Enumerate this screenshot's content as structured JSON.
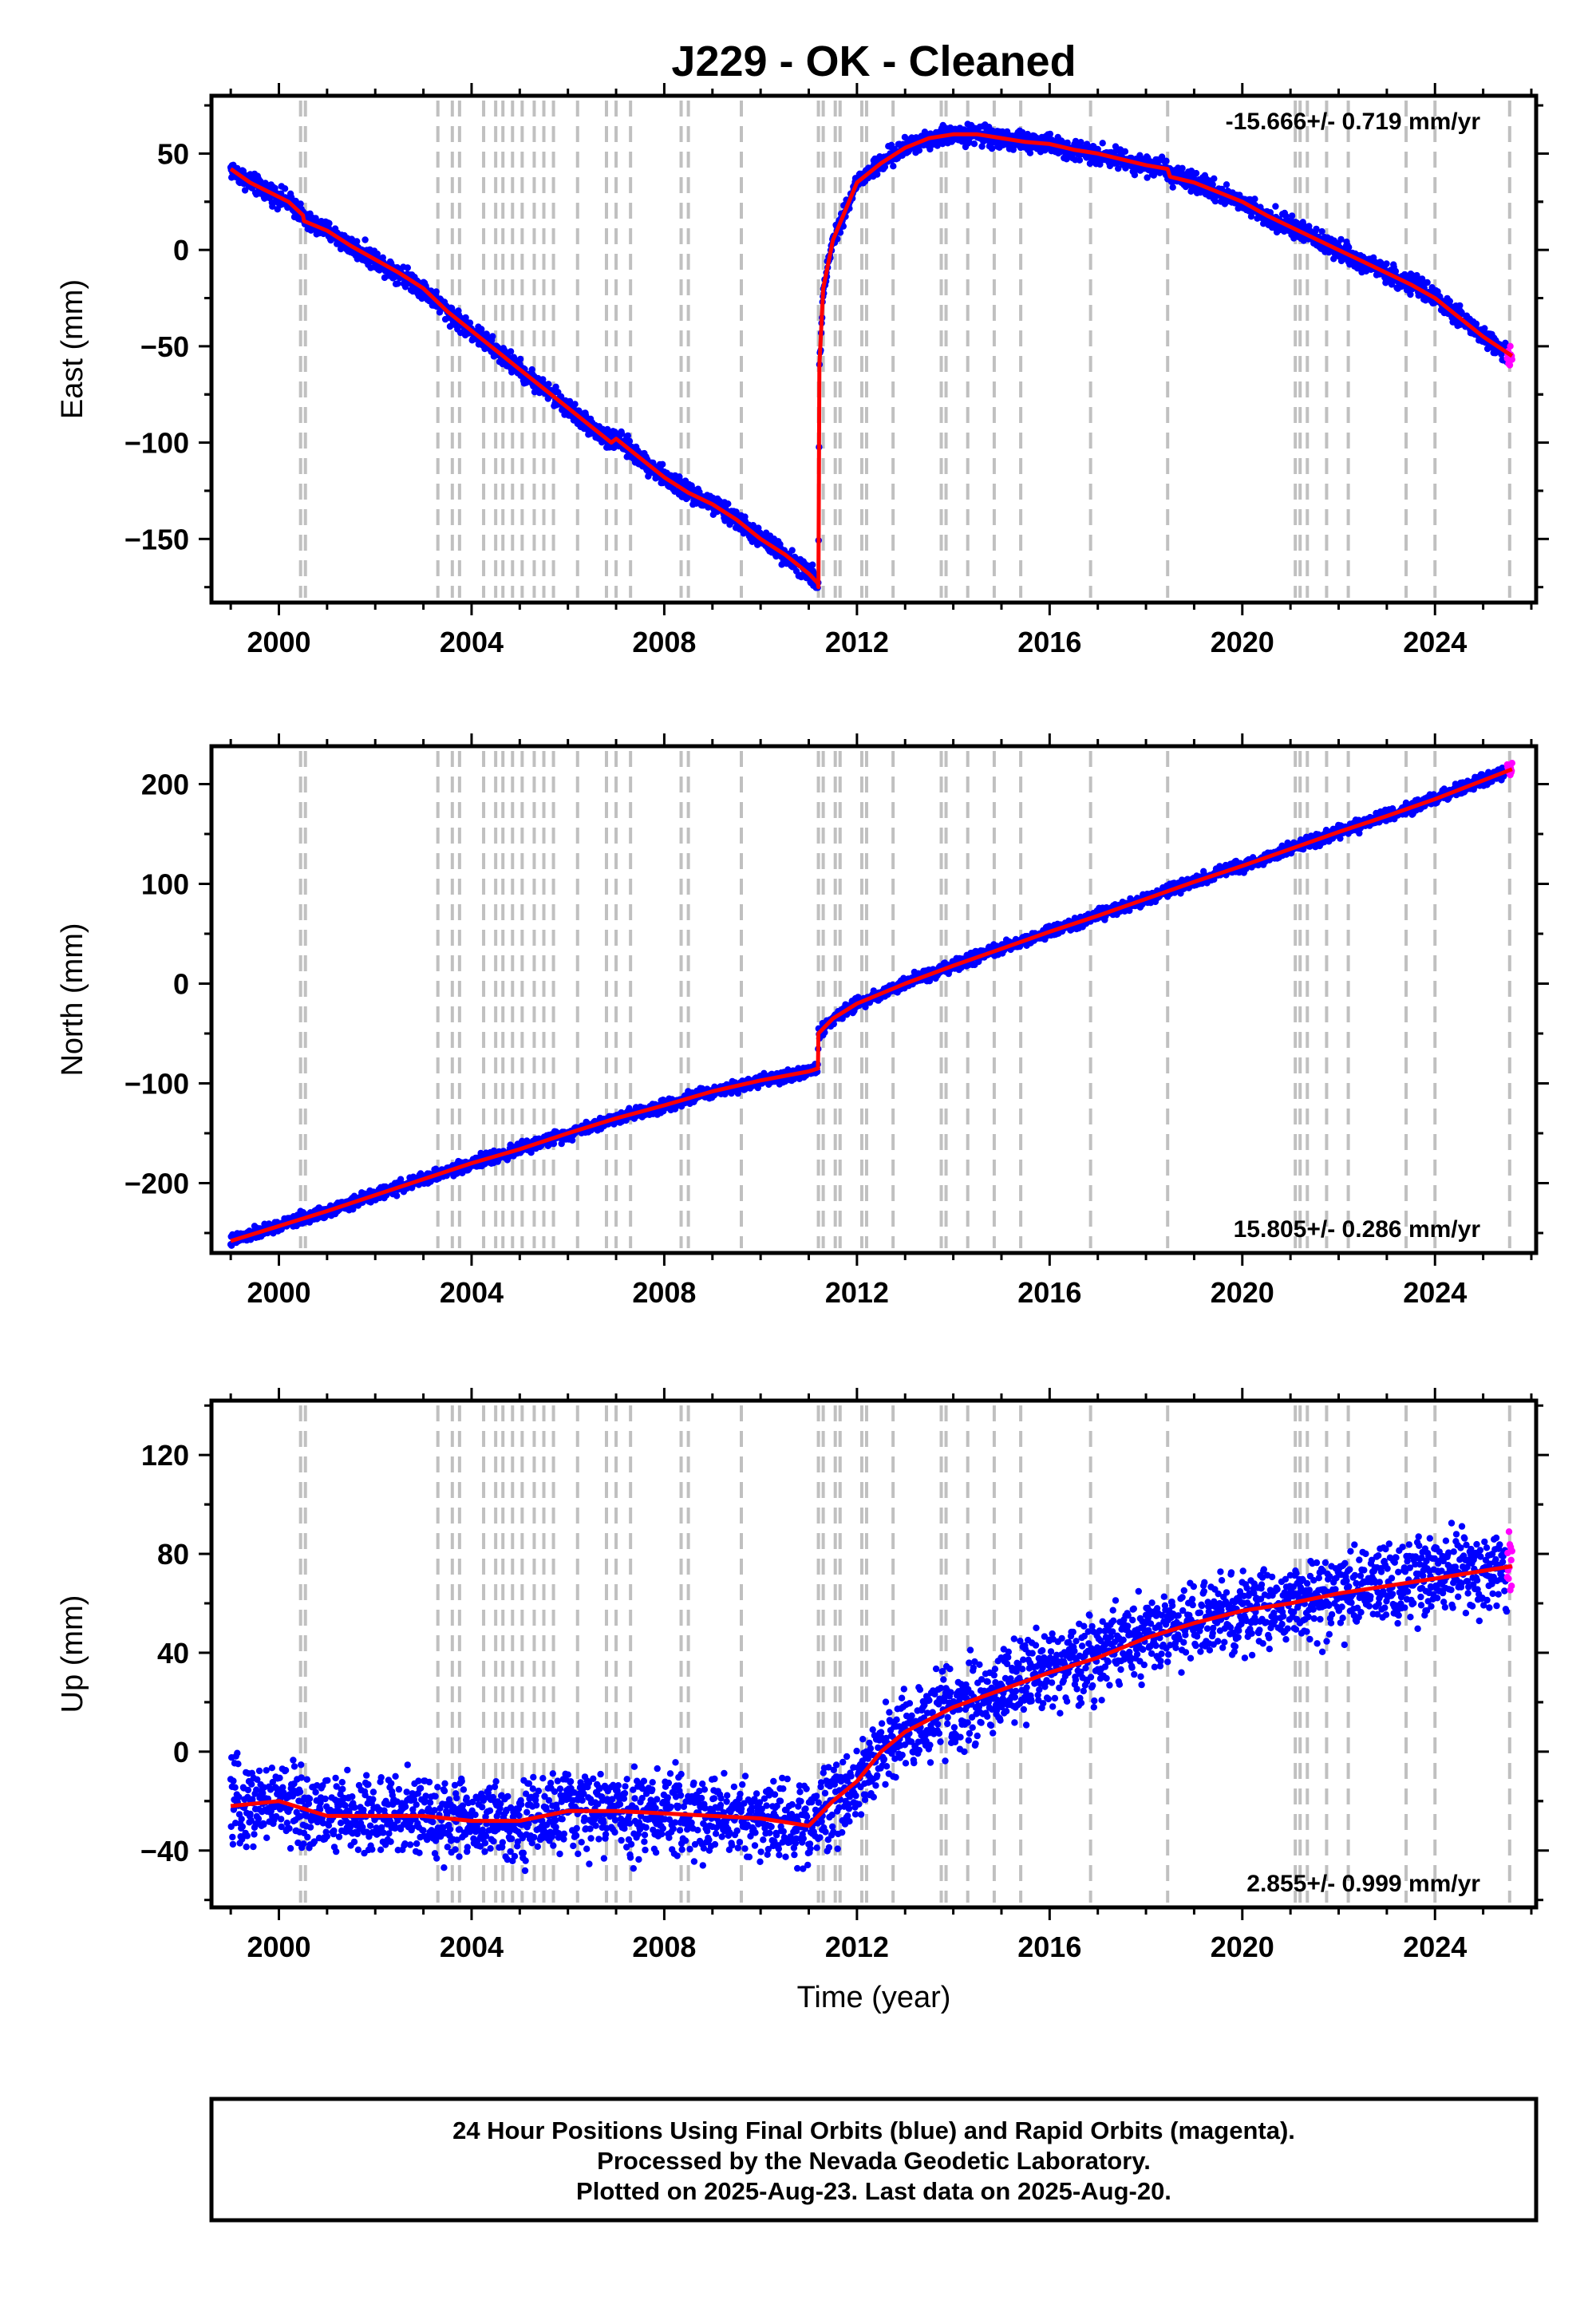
{
  "page": {
    "title": "J229  - OK - Cleaned",
    "xlabel": "Time (year)",
    "footer": [
      "24 Hour Positions Using Final Orbits (blue) and Rapid Orbits (magenta).",
      "Processed by the Nevada Geodetic Laboratory.",
      "Plotted on 2025-Aug-23. Last data on 2025-Aug-20."
    ]
  },
  "colors": {
    "final_orbits": "#0000ff",
    "rapid_orbits": "#ff00ff",
    "model": "#ff0000",
    "event_lines": "#c0c0c0"
  },
  "event_lines_years": [
    2000.45,
    2000.55,
    2003.3,
    2003.6,
    2003.75,
    2004.25,
    2004.5,
    2004.65,
    2004.85,
    2005.05,
    2005.3,
    2005.5,
    2005.7,
    2006.2,
    2006.8,
    2007.0,
    2007.3,
    2008.35,
    2008.5,
    2009.6,
    2011.2,
    2011.3,
    2011.55,
    2011.65,
    2012.1,
    2012.2,
    2012.75,
    2013.75,
    2013.85,
    2014.3,
    2014.85,
    2015.4,
    2016.85,
    2018.45,
    2021.1,
    2021.2,
    2021.35,
    2021.75,
    2022.2,
    2023.4,
    2024.0,
    2025.55
  ],
  "chart_data": [
    {
      "type": "scatter",
      "ylabel": "East (mm)",
      "xlim": [
        1998.6,
        2026.1
      ],
      "ylim": [
        -183,
        80
      ],
      "xticks": [
        2000,
        2004,
        2008,
        2012,
        2016,
        2020,
        2024
      ],
      "yticks": [
        -150,
        -100,
        -50,
        0,
        50
      ],
      "ytick_labels": [
        "−150",
        "−100",
        "−50",
        "0",
        "50"
      ],
      "rate": "-15.666+/- 0.719 mm/yr",
      "rate_position": "top-right",
      "scatter": 2.5,
      "model": {
        "x": [
          1999.0,
          1999.4,
          1999.8,
          2000.2,
          2000.5,
          2000.52,
          2001.0,
          2001.5,
          2002.0,
          2002.5,
          2003.0,
          2003.5,
          2004.0,
          2004.5,
          2005.0,
          2005.5,
          2006.0,
          2006.5,
          2006.9,
          2007.0,
          2007.5,
          2008.0,
          2008.5,
          2009.0,
          2009.5,
          2010.0,
          2010.5,
          2011.0,
          2011.19,
          2011.2,
          2011.22,
          2011.3,
          2011.5,
          2012.0,
          2012.5,
          2013.0,
          2013.5,
          2014.0,
          2014.5,
          2015.0,
          2015.5,
          2016.0,
          2016.5,
          2017.0,
          2017.5,
          2018.0,
          2018.45,
          2018.5,
          2019.0,
          2019.5,
          2020.0,
          2020.5,
          2021.0,
          2021.5,
          2022.0,
          2022.5,
          2023.0,
          2023.5,
          2024.0,
          2024.5,
          2025.0,
          2025.6
        ],
        "y": [
          42,
          35,
          30,
          25,
          18,
          15,
          10,
          2,
          -5,
          -12,
          -20,
          -32,
          -42,
          -52,
          -62,
          -72,
          -82,
          -92,
          -100,
          -98,
          -108,
          -118,
          -126,
          -132,
          -140,
          -150,
          -158,
          -168,
          -173,
          -175,
          -60,
          -20,
          5,
          35,
          45,
          53,
          58,
          60,
          60,
          58,
          56,
          55,
          52,
          50,
          47,
          44,
          42,
          38,
          35,
          30,
          25,
          18,
          12,
          6,
          0,
          -6,
          -12,
          -18,
          -25,
          -35,
          -45,
          -55
        ]
      }
    },
    {
      "type": "scatter",
      "ylabel": "North (mm)",
      "xlim": [
        1998.6,
        2026.1
      ],
      "ylim": [
        -270,
        238
      ],
      "xticks": [
        2000,
        2004,
        2008,
        2012,
        2016,
        2020,
        2024
      ],
      "yticks": [
        -200,
        -100,
        0,
        100,
        200
      ],
      "ytick_labels": [
        "−200",
        "−100",
        "0",
        "100",
        "200"
      ],
      "rate": "15.805+/- 0.286 mm/yr",
      "rate_position": "bottom-right",
      "scatter": 3,
      "model": {
        "x": [
          1999.0,
          2000.0,
          2001.0,
          2002.0,
          2003.0,
          2004.0,
          2005.0,
          2006.0,
          2007.0,
          2008.0,
          2009.0,
          2010.0,
          2011.0,
          2011.19,
          2011.2,
          2011.5,
          2012.0,
          2013.0,
          2014.0,
          2015.0,
          2016.0,
          2017.0,
          2018.0,
          2019.0,
          2020.0,
          2021.0,
          2022.0,
          2023.0,
          2024.0,
          2025.6
        ],
        "y": [
          -258,
          -243,
          -228,
          -212,
          -196,
          -180,
          -166,
          -150,
          -135,
          -122,
          -108,
          -97,
          -88,
          -85,
          -50,
          -35,
          -20,
          0,
          18,
          35,
          52,
          68,
          85,
          102,
          118,
          135,
          152,
          168,
          185,
          215
        ]
      }
    },
    {
      "type": "scatter",
      "ylabel": "Up (mm)",
      "xlim": [
        1998.6,
        2026.1
      ],
      "ylim": [
        -63,
        142
      ],
      "xticks": [
        2000,
        2004,
        2008,
        2012,
        2016,
        2020,
        2024
      ],
      "yticks": [
        -40,
        0,
        40,
        80,
        120
      ],
      "ytick_labels": [
        "−40",
        "0",
        "40",
        "80",
        "120"
      ],
      "rate": "2.855+/- 0.999 mm/yr",
      "rate_position": "bottom-right",
      "scatter": 8,
      "model": {
        "x": [
          1999.0,
          2000.0,
          2001.0,
          2002.0,
          2003.0,
          2004.0,
          2005.0,
          2006.0,
          2007.0,
          2008.0,
          2009.0,
          2010.0,
          2011.0,
          2011.5,
          2012.0,
          2012.5,
          2013.0,
          2014.0,
          2015.0,
          2016.0,
          2017.0,
          2018.0,
          2019.0,
          2020.0,
          2021.0,
          2022.0,
          2023.0,
          2024.0,
          2025.6
        ],
        "y": [
          -22,
          -20,
          -26,
          -26,
          -26,
          -28,
          -28,
          -24,
          -24,
          -25,
          -26,
          -27,
          -30,
          -20,
          -12,
          0,
          8,
          18,
          25,
          32,
          38,
          46,
          52,
          57,
          60,
          64,
          67,
          70,
          75
        ]
      }
    }
  ]
}
